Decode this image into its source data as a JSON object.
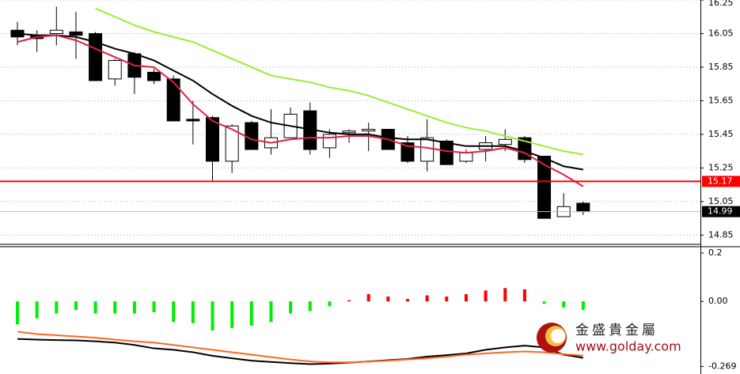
{
  "chart_data": [
    {
      "type": "candlestick",
      "open": [
        16.07,
        16.04,
        16.05,
        16.06,
        16.05,
        15.78,
        15.93,
        15.82,
        15.78,
        15.54,
        15.55,
        15.29,
        15.52,
        15.37,
        15.43,
        15.59,
        15.37,
        15.46,
        15.47,
        15.48,
        15.4,
        15.29,
        15.41,
        15.29,
        15.36,
        15.39,
        15.43,
        15.32,
        14.96,
        15.04
      ],
      "high": [
        16.12,
        16.07,
        16.21,
        16.18,
        16.06,
        15.9,
        15.94,
        15.84,
        15.8,
        15.65,
        15.56,
        15.51,
        15.53,
        15.6,
        15.61,
        15.64,
        15.48,
        15.48,
        15.52,
        15.48,
        15.44,
        15.54,
        15.42,
        15.36,
        15.44,
        15.48,
        15.44,
        15.32,
        15.1,
        15.05
      ],
      "low": [
        15.98,
        15.94,
        15.98,
        15.9,
        15.77,
        15.74,
        15.69,
        15.75,
        15.53,
        15.39,
        15.17,
        15.22,
        15.36,
        15.33,
        15.43,
        15.33,
        15.31,
        15.4,
        15.35,
        15.36,
        15.28,
        15.23,
        15.27,
        15.28,
        15.29,
        15.35,
        15.28,
        14.95,
        14.96,
        14.97
      ],
      "close": [
        16.03,
        16.02,
        16.07,
        16.04,
        15.77,
        15.89,
        15.79,
        15.77,
        15.53,
        15.53,
        15.29,
        15.5,
        15.36,
        15.43,
        15.57,
        15.36,
        15.45,
        15.47,
        15.48,
        15.36,
        15.29,
        15.43,
        15.27,
        15.34,
        15.4,
        15.42,
        15.3,
        14.95,
        15.02,
        14.99
      ],
      "up_color": "#ffffff",
      "down_color": "#000000",
      "series": [
        {
          "color": "#99ee33",
          "values": [
            null,
            null,
            null,
            null,
            16.2,
            16.15,
            16.1,
            16.06,
            16.03,
            16.0,
            15.95,
            15.9,
            15.85,
            15.8,
            15.78,
            15.76,
            15.73,
            15.71,
            15.68,
            15.64,
            15.6,
            15.56,
            15.52,
            15.49,
            15.47,
            15.44,
            15.41,
            15.38,
            15.35,
            15.33
          ]
        },
        {
          "color": "#000000",
          "values": [
            16.05,
            16.04,
            16.04,
            16.03,
            16.0,
            15.96,
            15.93,
            15.89,
            15.83,
            15.77,
            15.69,
            15.62,
            15.56,
            15.52,
            15.5,
            15.48,
            15.46,
            15.45,
            15.45,
            15.43,
            15.42,
            15.42,
            15.4,
            15.38,
            15.38,
            15.38,
            15.35,
            15.31,
            15.26,
            15.24
          ]
        },
        {
          "color": "#dd2244",
          "values": [
            16.0,
            16.03,
            16.04,
            16.01,
            15.96,
            15.91,
            15.86,
            15.85,
            15.76,
            15.63,
            15.53,
            15.48,
            15.42,
            15.4,
            15.42,
            15.43,
            15.43,
            15.44,
            15.44,
            15.42,
            15.38,
            15.37,
            15.35,
            15.34,
            15.35,
            15.37,
            15.34,
            15.27,
            15.21,
            15.14
          ]
        }
      ],
      "markers": [
        {
          "value": 15.17,
          "color": "#ff0000"
        },
        {
          "value": 14.99,
          "color": "#000000"
        }
      ],
      "ylim": [
        14.8,
        16.25
      ],
      "yticks": [
        16.25,
        16.05,
        15.85,
        15.65,
        15.45,
        15.25,
        15.05,
        14.85
      ],
      "grid": true
    },
    {
      "type": "macd",
      "values": [
        -0.095,
        -0.07,
        -0.05,
        -0.035,
        -0.05,
        -0.05,
        -0.05,
        -0.045,
        -0.085,
        -0.09,
        -0.12,
        -0.11,
        -0.1,
        -0.085,
        -0.05,
        -0.04,
        -0.02,
        0.005,
        0.03,
        0.02,
        0.01,
        0.025,
        0.02,
        0.03,
        0.045,
        0.055,
        0.05,
        -0.01,
        -0.025,
        -0.035
      ],
      "positive_color": "#ff0000",
      "negative_color": "#00ee00",
      "series": [
        {
          "color": "#000000",
          "values": [
            -0.155,
            -0.158,
            -0.16,
            -0.161,
            -0.165,
            -0.17,
            -0.18,
            -0.194,
            -0.2,
            -0.21,
            -0.225,
            -0.235,
            -0.245,
            -0.25,
            -0.255,
            -0.259,
            -0.257,
            -0.253,
            -0.248,
            -0.243,
            -0.238,
            -0.228,
            -0.222,
            -0.215,
            -0.2,
            -0.19,
            -0.183,
            -0.19,
            -0.22,
            -0.233
          ]
        },
        {
          "color": "#ff6622",
          "values": [
            -0.125,
            -0.135,
            -0.14,
            -0.145,
            -0.15,
            -0.158,
            -0.165,
            -0.17,
            -0.18,
            -0.19,
            -0.2,
            -0.21,
            -0.22,
            -0.23,
            -0.24,
            -0.248,
            -0.252,
            -0.252,
            -0.249,
            -0.245,
            -0.24,
            -0.235,
            -0.228,
            -0.22,
            -0.215,
            -0.21,
            -0.207,
            -0.21,
            -0.218,
            -0.224
          ]
        }
      ],
      "ylim": [
        -0.3,
        0.226
      ],
      "yticks": [
        0.2,
        {
          "value": 0,
          "label": "0.00"
        },
        -0.269
      ]
    }
  ],
  "watermark": {
    "name": "金盛貴金屬",
    "url": "www.golday.com"
  }
}
